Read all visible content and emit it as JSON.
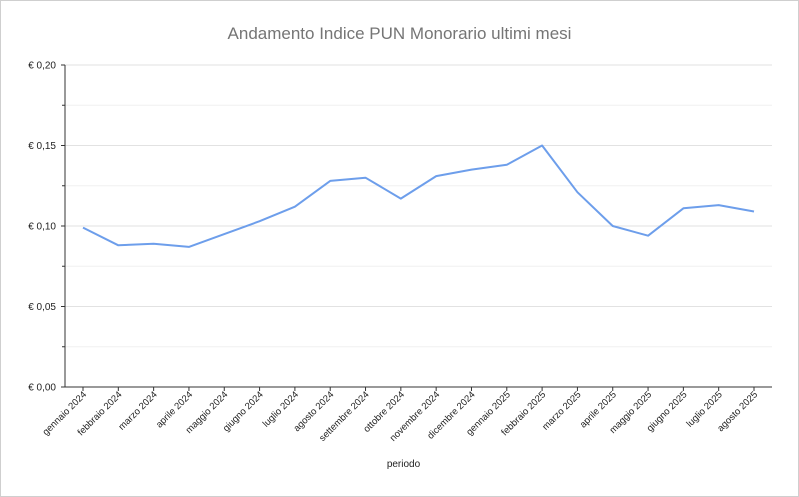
{
  "chart_data": {
    "type": "line",
    "title": "Andamento Indice PUN Monorario ultimi mesi",
    "xlabel": "periodo",
    "ylabel": "",
    "ylim": [
      0,
      0.2
    ],
    "y_ticks": [
      "€ 0,00",
      "€ 0,05",
      "€ 0,10",
      "€ 0,15",
      "€ 0,20"
    ],
    "y_tick_values": [
      0,
      0.05,
      0.1,
      0.15,
      0.2
    ],
    "grid": true,
    "line_color": "#6d9eeb",
    "categories": [
      "gennaio 2024",
      "febbraio 2024",
      "marzo 2024",
      "aprile 2024",
      "maggio 2024",
      "giugno 2024",
      "luglio 2024",
      "agosto 2024",
      "settembre 2024",
      "ottobre 2024",
      "novembre 2024",
      "dicembre 2024",
      "gennaio 2025",
      "febbraio 2025",
      "marzo 2025",
      "aprile 2025",
      "maggio 2025",
      "giugno 2025",
      "luglio 2025",
      "agosto 2025"
    ],
    "series": [
      {
        "values": [
          0.099,
          0.088,
          0.089,
          0.087,
          0.095,
          0.103,
          0.112,
          0.128,
          0.13,
          0.117,
          0.131,
          0.135,
          0.138,
          0.15,
          0.121,
          0.1,
          0.094,
          0.111,
          0.113,
          0.109
        ]
      }
    ]
  }
}
